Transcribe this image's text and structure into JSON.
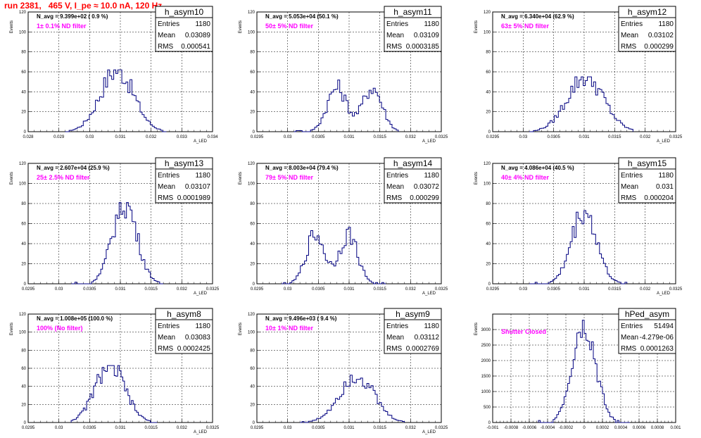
{
  "title": "run 2381,   465 V, I_pe ≈ 10.0 nA, 120 Hz",
  "chart_data": [
    {
      "type": "histogram",
      "name": "h_asym10",
      "entries": "1180",
      "mean": "0.03089",
      "rms": "0.000541",
      "navg": "N_avg = 9.399e+02 ( 0.9 %)",
      "filter": "1± 0.1% ND filter",
      "ylabel": "Events",
      "xlabel": "A_LED",
      "xlim": [
        0.028,
        0.034
      ],
      "ylim": [
        0,
        120
      ],
      "yticks": [
        0,
        20,
        40,
        60,
        80,
        100,
        120
      ],
      "xticks": [
        "0.028",
        "0.029",
        "0.03",
        "0.031",
        "0.032",
        "0.033",
        "0.034"
      ],
      "mu": 0.03089,
      "sigma": 0.000541,
      "peak": 62,
      "lo": 0.0292,
      "hi": 0.0325
    },
    {
      "type": "histogram",
      "name": "h_asym11",
      "entries": "1180",
      "mean": "0.03109",
      "rms": "0.0003185",
      "navg": "N_avg = 5.053e+04 (50.1 %)",
      "filter": "50± 5% ND filter",
      "ylabel": "Events",
      "xlabel": "A_LED",
      "xlim": [
        0.0295,
        0.0325
      ],
      "ylim": [
        0,
        120
      ],
      "yticks": [
        0,
        20,
        40,
        60,
        80,
        100,
        120
      ],
      "xticks": [
        "0.0295",
        "0.03",
        "0.0305",
        "0.031",
        "0.0315",
        "0.032",
        "0.0325"
      ],
      "mu": 0.03109,
      "sigma": 0.0003185,
      "peak": 52,
      "lo": 0.0301,
      "hi": 0.0318,
      "bimodal": true
    },
    {
      "type": "histogram",
      "name": "h_asym12",
      "entries": "1180",
      "mean": "0.03102",
      "rms": "0.000299",
      "navg": "N_avg = 6.340e+04 (62.9 %)",
      "filter": "63± 5% ND filter",
      "ylabel": "Events",
      "xlabel": "A_LED",
      "xlim": [
        0.0295,
        0.0325
      ],
      "ylim": [
        0,
        120
      ],
      "yticks": [
        0,
        20,
        40,
        60,
        80,
        100,
        120
      ],
      "xticks": [
        "0.0295",
        "0.03",
        "0.0305",
        "0.031",
        "0.0315",
        "0.032",
        "0.0325"
      ],
      "mu": 0.03102,
      "sigma": 0.000299,
      "peak": 55,
      "lo": 0.0301,
      "hi": 0.0318
    },
    {
      "type": "histogram",
      "name": "h_asym13",
      "entries": "1180",
      "mean": "0.03107",
      "rms": "0.0001989",
      "navg": "N_avg = 2.607e+04 (25.9 %)",
      "filter": "25± 2.5% ND filter",
      "ylabel": "Events",
      "xlabel": "A_LED",
      "xlim": [
        0.0295,
        0.0325
      ],
      "ylim": [
        0,
        120
      ],
      "yticks": [
        0,
        20,
        40,
        60,
        80,
        100,
        120
      ],
      "xticks": [
        "0.0295",
        "0.03",
        "0.0305",
        "0.031",
        "0.0315",
        "0.032",
        "0.0325"
      ],
      "mu": 0.03107,
      "sigma": 0.0001989,
      "peak": 81,
      "lo": 0.0302,
      "hi": 0.0317
    },
    {
      "type": "histogram",
      "name": "h_asym14",
      "entries": "1180",
      "mean": "0.03072",
      "rms": "0.000299",
      "navg": "N_avg = 8.003e+04 (79.4 %)",
      "filter": "79± 5% ND filter",
      "ylabel": "Events",
      "xlabel": "A_LED",
      "xlim": [
        0.0295,
        0.0325
      ],
      "ylim": [
        0,
        120
      ],
      "yticks": [
        0,
        20,
        40,
        60,
        80,
        100,
        120
      ],
      "xticks": [
        "0.0295",
        "0.03",
        "0.0305",
        "0.031",
        "0.0315",
        "0.032",
        "0.0325"
      ],
      "mu": 0.03072,
      "sigma": 0.000299,
      "peak": 58,
      "lo": 0.0299,
      "hi": 0.0316,
      "bimodal": true
    },
    {
      "type": "histogram",
      "name": "h_asym15",
      "entries": "1180",
      "mean": "0.031",
      "rms": "0.000204",
      "navg": "N_avg = 4.086e+04 (40.5 %)",
      "filter": "40± 4% ND filter",
      "ylabel": "Events",
      "xlabel": "A_LED",
      "xlim": [
        0.0295,
        0.0325
      ],
      "ylim": [
        0,
        120
      ],
      "yticks": [
        0,
        20,
        40,
        60,
        80,
        100,
        120
      ],
      "xticks": [
        "0.0295",
        "0.03",
        "0.0305",
        "0.031",
        "0.0315",
        "0.032",
        "0.0325"
      ],
      "mu": 0.031,
      "sigma": 0.000204,
      "peak": 73,
      "lo": 0.0301,
      "hi": 0.0317
    },
    {
      "type": "histogram",
      "name": "h_asym8",
      "entries": "1180",
      "mean": "0.03083",
      "rms": "0.0002425",
      "navg": "N_avg = 1.008e+05 (100.0 %)",
      "filter": "100% (No filter)",
      "ylabel": "Events",
      "xlabel": "A_LED",
      "xlim": [
        0.0295,
        0.0325
      ],
      "ylim": [
        0,
        120
      ],
      "yticks": [
        0,
        20,
        40,
        60,
        80,
        100,
        120
      ],
      "xticks": [
        "0.0295",
        "0.03",
        "0.0305",
        "0.031",
        "0.0315",
        "0.032",
        "0.0325"
      ],
      "mu": 0.03083,
      "sigma": 0.0002425,
      "peak": 63,
      "lo": 0.0302,
      "hi": 0.0316
    },
    {
      "type": "histogram",
      "name": "h_asym9",
      "entries": "1180",
      "mean": "0.03112",
      "rms": "0.0002769",
      "navg": "N_avg = 9.496e+03 ( 9.4 %)",
      "filter": "10± 1% ND filter",
      "ylabel": "Events",
      "xlabel": "A_LED",
      "xlim": [
        0.0295,
        0.0325
      ],
      "ylim": [
        0,
        120
      ],
      "yticks": [
        0,
        20,
        40,
        60,
        80,
        100,
        120
      ],
      "xticks": [
        "0.0295",
        "0.03",
        "0.0305",
        "0.031",
        "0.0315",
        "0.032",
        "0.0325"
      ],
      "mu": 0.03112,
      "sigma": 0.0002769,
      "peak": 53,
      "lo": 0.0302,
      "hi": 0.0319
    },
    {
      "type": "histogram",
      "name": "hPed_asym",
      "entries": "51494",
      "mean": "-4.279e-06",
      "rms": "0.0001263",
      "navg": "",
      "filter": "Shutter Closed",
      "ylabel": "Events",
      "xlabel": "",
      "xlim": [
        -0.001,
        0.001
      ],
      "ylim": [
        0,
        3500
      ],
      "yticks": [
        0,
        500,
        1000,
        1500,
        2000,
        2500,
        3000
      ],
      "xticks": [
        "-0.001",
        "-0.0008",
        "-0.0006",
        "-0.0004",
        "-0.0002",
        "0",
        "0.0002",
        "0.0004",
        "0.0006",
        "0.0008",
        "0.001"
      ],
      "mu": -4.279e-06,
      "sigma": 0.0001263,
      "peak": 3300,
      "lo": -0.0005,
      "hi": 0.0005
    }
  ],
  "labels": {
    "entries": "Entries",
    "mean": "Mean",
    "rms": "RMS"
  }
}
